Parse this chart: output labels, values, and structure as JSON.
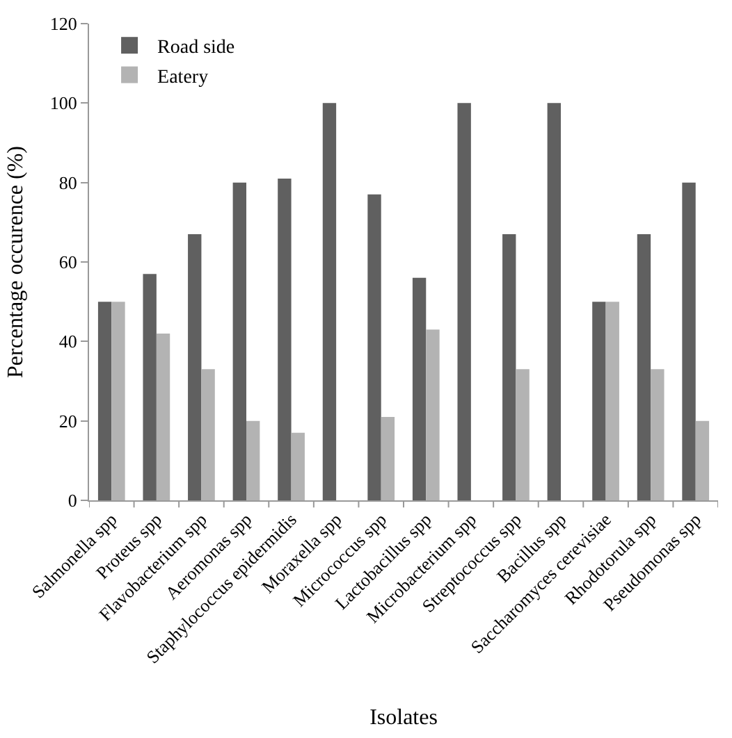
{
  "chart_data": {
    "type": "bar",
    "xlabel": "Isolates",
    "ylabel": "Percentage occurence (%)",
    "categories": [
      "Salmonella spp",
      "Proteus spp",
      "Flavobacterium spp",
      "Aeromonas spp",
      "Staphylococcus epidermidis",
      "Moraxella spp",
      "Micrococcus spp",
      "Lactobacillus spp",
      "Microbacterium spp",
      "Streptococcus spp",
      "Bacillus spp",
      "Saccharomyces cerevisiae",
      "Rhodotorula spp",
      "Pseudomonas spp"
    ],
    "series": [
      {
        "name": "Road side",
        "color": "#606060",
        "values": [
          50,
          57,
          67,
          80,
          81,
          100,
          77,
          56,
          100,
          67,
          100,
          50,
          67,
          80
        ]
      },
      {
        "name": "Eatery",
        "color": "#b3b3b3",
        "values": [
          50,
          42,
          33,
          20,
          17,
          0,
          21,
          43,
          0,
          33,
          0,
          50,
          33,
          20
        ]
      }
    ],
    "ylim": [
      0,
      120
    ],
    "yticks": [
      0,
      20,
      40,
      60,
      80,
      100,
      120
    ],
    "legend": "top left"
  }
}
